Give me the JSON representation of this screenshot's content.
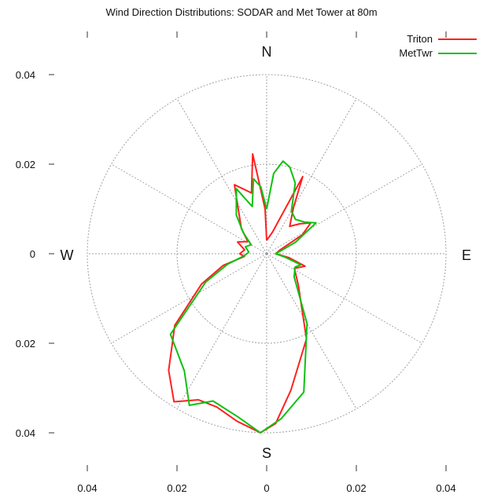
{
  "chart_data": {
    "type": "polar-line",
    "title": "Wind Direction Distributions: SODAR and Met Tower at 80m",
    "radial_max": 0.04,
    "rings": [
      0.02,
      0.04
    ],
    "spoke_step_deg": 30,
    "grid": true,
    "legend_position": "top-right",
    "compass": {
      "n": "N",
      "e": "E",
      "s": "S",
      "w": "W"
    },
    "y_ticks": [
      {
        "value": 0.04,
        "label": "0.04"
      },
      {
        "value": 0.02,
        "label": "0.02"
      },
      {
        "value": 0,
        "label": "0"
      },
      {
        "value": -0.02,
        "label": "0.02"
      },
      {
        "value": -0.04,
        "label": "0.04"
      }
    ],
    "x_ticks": [
      {
        "value": -0.04,
        "label": "0.04"
      },
      {
        "value": -0.02,
        "label": "0.02"
      },
      {
        "value": 0,
        "label": "0"
      },
      {
        "value": 0.02,
        "label": "0.02"
      },
      {
        "value": 0.04,
        "label": "0.04"
      }
    ],
    "series": [
      {
        "name": "Triton",
        "color": "#ff2020",
        "points": [
          [
            0,
            0.003
          ],
          [
            15,
            0.005
          ],
          [
            25,
            0.019
          ],
          [
            30,
            0.012
          ],
          [
            40,
            0.008
          ],
          [
            48,
            0.01
          ],
          [
            55,
            0.012
          ],
          [
            62,
            0.009
          ],
          [
            75,
            0.003
          ],
          [
            90,
            0.002
          ],
          [
            100,
            0.005
          ],
          [
            108,
            0.009
          ],
          [
            118,
            0.007
          ],
          [
            135,
            0.01
          ],
          [
            155,
            0.021
          ],
          [
            170,
            0.031
          ],
          [
            177,
            0.038
          ],
          [
            182,
            0.04
          ],
          [
            190,
            0.038
          ],
          [
            198,
            0.036
          ],
          [
            205,
            0.036
          ],
          [
            212,
            0.039
          ],
          [
            220,
            0.034
          ],
          [
            232,
            0.026
          ],
          [
            245,
            0.016
          ],
          [
            255,
            0.01
          ],
          [
            263,
            0.005
          ],
          [
            270,
            0.006
          ],
          [
            280,
            0.005
          ],
          [
            292,
            0.007
          ],
          [
            303,
            0.005
          ],
          [
            315,
            0.008
          ],
          [
            335,
            0.017
          ],
          [
            346,
            0.014
          ],
          [
            352,
            0.0225
          ],
          [
            358,
            0.01
          ],
          [
            360,
            0.003
          ]
        ]
      },
      {
        "name": "MetTwr",
        "color": "#10c010",
        "points": [
          [
            0,
            0.01
          ],
          [
            5,
            0.018
          ],
          [
            10,
            0.021
          ],
          [
            15,
            0.02
          ],
          [
            22,
            0.017
          ],
          [
            30,
            0.011
          ],
          [
            40,
            0.01
          ],
          [
            50,
            0.011
          ],
          [
            58,
            0.013
          ],
          [
            68,
            0.007
          ],
          [
            80,
            0.003
          ],
          [
            90,
            0.002
          ],
          [
            100,
            0.004
          ],
          [
            108,
            0.008
          ],
          [
            115,
            0.007
          ],
          [
            130,
            0.008
          ],
          [
            150,
            0.018
          ],
          [
            165,
            0.032
          ],
          [
            175,
            0.037
          ],
          [
            182,
            0.04
          ],
          [
            190,
            0.037
          ],
          [
            200,
            0.035
          ],
          [
            207,
            0.038
          ],
          [
            215,
            0.032
          ],
          [
            230,
            0.028
          ],
          [
            245,
            0.015
          ],
          [
            255,
            0.009
          ],
          [
            265,
            0.005
          ],
          [
            275,
            0.004
          ],
          [
            288,
            0.005
          ],
          [
            300,
            0.004
          ],
          [
            312,
            0.007
          ],
          [
            322,
            0.011
          ],
          [
            335,
            0.016
          ],
          [
            343,
            0.011
          ],
          [
            350,
            0.017
          ],
          [
            355,
            0.015
          ],
          [
            360,
            0.01
          ]
        ]
      }
    ]
  }
}
